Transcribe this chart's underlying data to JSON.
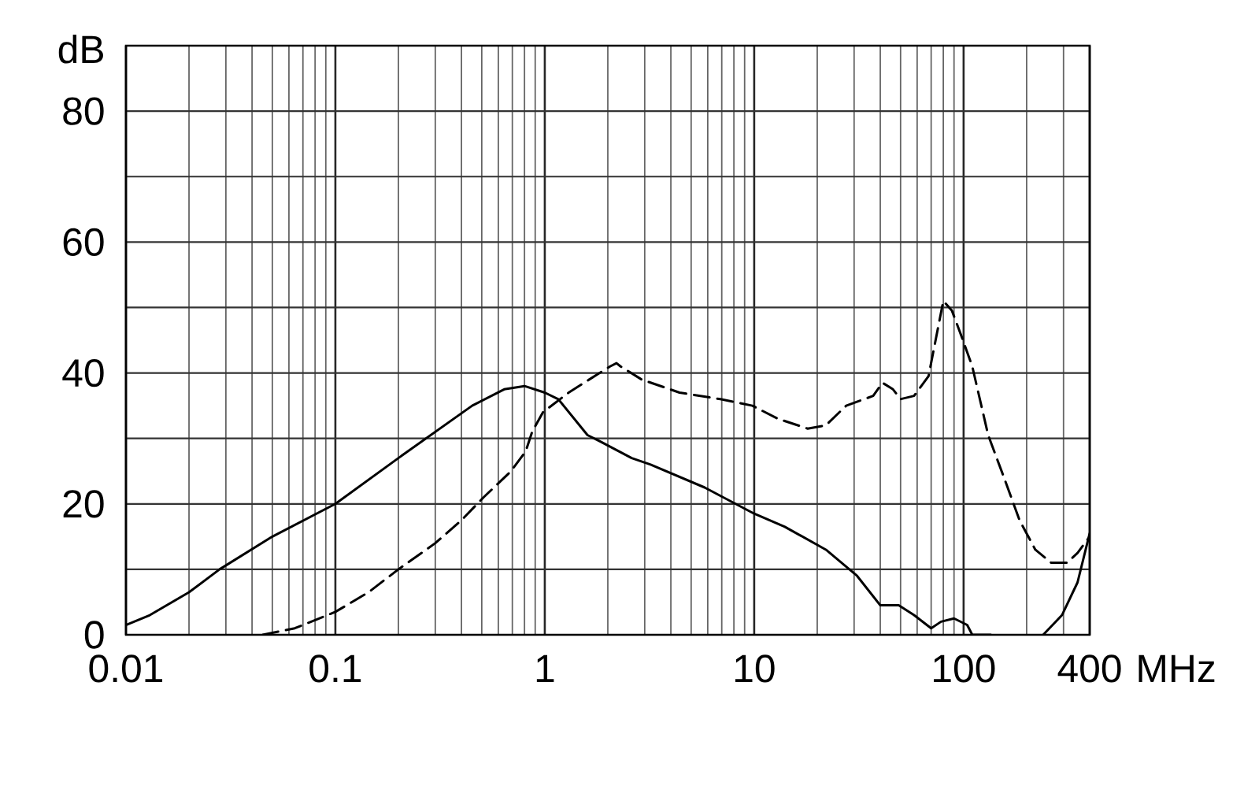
{
  "chart_data": {
    "type": "line",
    "xlabel": "MHz",
    "ylabel": "dB",
    "log": "x",
    "grid": true,
    "xlim": [
      0.01,
      400
    ],
    "ylim": [
      0,
      90
    ],
    "xticks": [
      0.01,
      {
        "value": 0.02,
        "label": null
      },
      {
        "value": 0.03,
        "label": null
      },
      {
        "value": 0.04,
        "label": null
      },
      {
        "value": 0.05,
        "label": null
      },
      {
        "value": 0.06,
        "label": null
      },
      {
        "value": 0.07,
        "label": null
      },
      {
        "value": 0.08,
        "label": null
      },
      {
        "value": 0.09,
        "label": null
      },
      0.1,
      {
        "value": 0.2,
        "label": null
      },
      {
        "value": 0.3,
        "label": null
      },
      {
        "value": 0.4,
        "label": null
      },
      {
        "value": 0.5,
        "label": null
      },
      {
        "value": 0.6,
        "label": null
      },
      {
        "value": 0.7,
        "label": null
      },
      {
        "value": 0.8,
        "label": null
      },
      {
        "value": 0.9,
        "label": null
      },
      1,
      {
        "value": 2,
        "label": null
      },
      {
        "value": 3,
        "label": null
      },
      {
        "value": 4,
        "label": null
      },
      {
        "value": 5,
        "label": null
      },
      {
        "value": 6,
        "label": null
      },
      {
        "value": 7,
        "label": null
      },
      {
        "value": 8,
        "label": null
      },
      {
        "value": 9,
        "label": null
      },
      10,
      {
        "value": 20,
        "label": null
      },
      {
        "value": 30,
        "label": null
      },
      {
        "value": 40,
        "label": null
      },
      {
        "value": 50,
        "label": null
      },
      {
        "value": 60,
        "label": null
      },
      {
        "value": 70,
        "label": null
      },
      {
        "value": 80,
        "label": null
      },
      {
        "value": 90,
        "label": null
      },
      100,
      {
        "value": 200,
        "label": null
      },
      {
        "value": 300,
        "label": null
      },
      400
    ],
    "yticks": [
      0,
      {
        "value": 10,
        "label": null
      },
      20,
      {
        "value": 30,
        "label": null
      },
      40,
      {
        "value": 50,
        "label": null
      },
      60,
      {
        "value": 70,
        "label": null
      },
      80,
      {
        "value": 90,
        "label": null
      }
    ],
    "series": [
      {
        "color": "#000000",
        "line_style": "solid",
        "x": [
          0.01,
          0.013,
          0.02,
          0.028,
          0.05,
          0.1,
          0.2,
          0.3,
          0.45,
          0.64,
          0.8,
          1,
          1.16,
          1.6,
          1.85,
          2.6,
          3.2,
          5.8,
          10,
          14,
          22,
          31,
          40,
          49,
          58,
          70,
          78,
          90,
          104,
          110,
          135,
          190,
          240,
          295,
          350,
          400
        ],
        "values": [
          1.5,
          3,
          6.5,
          10,
          15,
          20,
          27,
          31,
          35,
          37.5,
          38,
          37,
          36,
          30.5,
          29.5,
          27,
          26,
          22.5,
          18.5,
          16.5,
          13,
          9,
          4.5,
          4.5,
          3,
          1,
          2,
          2.5,
          1.5,
          0,
          0,
          null,
          0,
          3,
          8,
          15.5
        ]
      },
      {
        "color": "#000000",
        "line_style": "dashed",
        "x": [
          0.045,
          0.064,
          0.1,
          0.144,
          0.2,
          0.3,
          0.4,
          0.51,
          0.69,
          0.81,
          0.87,
          0.98,
          1.3,
          1.63,
          2.05,
          2.2,
          2.3,
          2.9,
          4.4,
          6.9,
          9.8,
          13,
          18,
          22,
          27.5,
          37,
          41,
          46,
          50,
          58,
          68,
          74,
          80,
          88,
          98,
          110,
          131,
          156,
          185,
          220,
          262,
          312,
          350,
          400
        ],
        "values": [
          0,
          1,
          3.5,
          6.5,
          10,
          14,
          17.5,
          21,
          25,
          28,
          31,
          34,
          37,
          39,
          41,
          41.5,
          41,
          39,
          37,
          36,
          35,
          33,
          31.5,
          32,
          35,
          36.5,
          38.5,
          37.5,
          36,
          36.5,
          39.5,
          45.5,
          51,
          49.5,
          45.5,
          41,
          30.5,
          24,
          17.5,
          13,
          11,
          11,
          12.5,
          15
        ]
      }
    ]
  }
}
